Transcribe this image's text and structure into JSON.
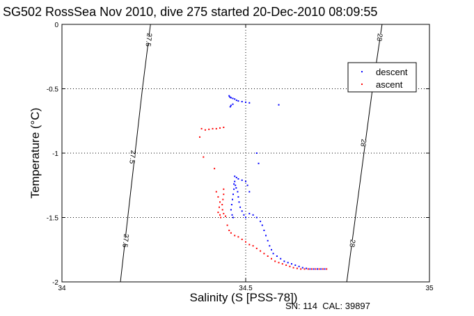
{
  "chart_data": {
    "type": "scatter",
    "title": "SG502 RossSea Nov 2010, dive 275 started 20-Dec-2010 08:09:55",
    "xlabel": "Salinity (S [PSS-78])",
    "ylabel": "Temperature (°C)",
    "xlim": [
      34,
      35
    ],
    "ylim": [
      -2,
      0
    ],
    "xticks": [
      34,
      34.5,
      35
    ],
    "xtick_labels": [
      "34",
      "34.5",
      "35"
    ],
    "yticks": [
      0,
      -0.5,
      -1,
      -1.5,
      -2
    ],
    "ytick_labels": [
      "0",
      "-0.5",
      "-1",
      "-1.5",
      "-2"
    ],
    "grid": true,
    "legend": {
      "position": "top-right",
      "entries": [
        "descent",
        "ascent"
      ]
    },
    "footer": "SN: 114  CAL: 39897",
    "colors": {
      "descent": "#0000ff",
      "ascent": "#ff0000",
      "axes": "#000000",
      "grid": "#000000"
    },
    "isopycnals": [
      {
        "label": "27.5",
        "points": [
          [
            34.159,
            -2.0
          ],
          [
            34.219,
            -0.5
          ],
          [
            34.241,
            0.0
          ]
        ],
        "label_positions": [
          [
            34.173,
            -1.68
          ],
          [
            34.192,
            -1.03
          ],
          [
            34.236,
            -0.12
          ]
        ]
      },
      {
        "label": "28",
        "points": [
          [
            34.775,
            -2.0
          ],
          [
            34.845,
            -0.5
          ],
          [
            34.871,
            0.0
          ]
        ],
        "label_positions": [
          [
            34.79,
            -1.7
          ],
          [
            34.82,
            -0.92
          ],
          [
            34.864,
            -0.1
          ]
        ]
      }
    ],
    "series": [
      {
        "name": "descent",
        "marker": "dot",
        "points": [
          [
            34.455,
            -0.555
          ],
          [
            34.457,
            -0.565
          ],
          [
            34.46,
            -0.57
          ],
          [
            34.465,
            -0.575
          ],
          [
            34.47,
            -0.58
          ],
          [
            34.475,
            -0.59
          ],
          [
            34.48,
            -0.595
          ],
          [
            34.49,
            -0.6
          ],
          [
            34.5,
            -0.605
          ],
          [
            34.51,
            -0.61
          ],
          [
            34.59,
            -0.625
          ],
          [
            34.465,
            -0.62
          ],
          [
            34.46,
            -0.63
          ],
          [
            34.458,
            -0.64
          ],
          [
            34.53,
            -1.0
          ],
          [
            34.535,
            -1.08
          ],
          [
            34.47,
            -1.18
          ],
          [
            34.475,
            -1.19
          ],
          [
            34.48,
            -1.2
          ],
          [
            34.49,
            -1.21
          ],
          [
            34.5,
            -1.22
          ],
          [
            34.505,
            -1.25
          ],
          [
            34.51,
            -1.3
          ],
          [
            34.47,
            -1.22
          ],
          [
            34.472,
            -1.25
          ],
          [
            34.468,
            -1.28
          ],
          [
            34.466,
            -1.32
          ],
          [
            34.464,
            -1.36
          ],
          [
            34.462,
            -1.4
          ],
          [
            34.46,
            -1.44
          ],
          [
            34.463,
            -1.48
          ],
          [
            34.466,
            -1.5
          ],
          [
            34.468,
            -1.24
          ],
          [
            34.474,
            -1.27
          ],
          [
            34.478,
            -1.3
          ],
          [
            34.48,
            -1.34
          ],
          [
            34.482,
            -1.38
          ],
          [
            34.485,
            -1.42
          ],
          [
            34.49,
            -1.45
          ],
          [
            34.495,
            -1.48
          ],
          [
            34.5,
            -1.5
          ],
          [
            34.51,
            -1.47
          ],
          [
            34.52,
            -1.48
          ],
          [
            34.53,
            -1.5
          ],
          [
            34.54,
            -1.53
          ],
          [
            34.545,
            -1.56
          ],
          [
            34.55,
            -1.6
          ],
          [
            34.555,
            -1.64
          ],
          [
            34.56,
            -1.68
          ],
          [
            34.565,
            -1.72
          ],
          [
            34.57,
            -1.75
          ],
          [
            34.575,
            -1.78
          ],
          [
            34.585,
            -1.8
          ],
          [
            34.595,
            -1.82
          ],
          [
            34.605,
            -1.84
          ],
          [
            34.615,
            -1.85
          ],
          [
            34.625,
            -1.86
          ],
          [
            34.635,
            -1.87
          ],
          [
            34.645,
            -1.88
          ],
          [
            34.655,
            -1.89
          ],
          [
            34.665,
            -1.895
          ],
          [
            34.675,
            -1.9
          ],
          [
            34.685,
            -1.9
          ],
          [
            34.695,
            -1.9
          ],
          [
            34.705,
            -1.9
          ],
          [
            34.715,
            -1.9
          ]
        ]
      },
      {
        "name": "ascent",
        "marker": "dot",
        "points": [
          [
            34.375,
            -0.875
          ],
          [
            34.38,
            -0.81
          ],
          [
            34.39,
            -0.82
          ],
          [
            34.4,
            -0.815
          ],
          [
            34.41,
            -0.81
          ],
          [
            34.42,
            -0.81
          ],
          [
            34.43,
            -0.805
          ],
          [
            34.44,
            -0.8
          ],
          [
            34.385,
            -1.03
          ],
          [
            34.415,
            -1.12
          ],
          [
            34.42,
            -1.3
          ],
          [
            34.425,
            -1.34
          ],
          [
            34.43,
            -1.38
          ],
          [
            34.428,
            -1.42
          ],
          [
            34.425,
            -1.46
          ],
          [
            34.43,
            -1.48
          ],
          [
            34.432,
            -1.5
          ],
          [
            34.44,
            -1.28
          ],
          [
            34.44,
            -1.32
          ],
          [
            34.438,
            -1.36
          ],
          [
            34.436,
            -1.4
          ],
          [
            34.437,
            -1.44
          ],
          [
            34.44,
            -1.47
          ],
          [
            34.445,
            -1.49
          ],
          [
            34.45,
            -1.56
          ],
          [
            34.455,
            -1.6
          ],
          [
            34.46,
            -1.62
          ],
          [
            34.47,
            -1.64
          ],
          [
            34.48,
            -1.65
          ],
          [
            34.49,
            -1.67
          ],
          [
            34.5,
            -1.69
          ],
          [
            34.51,
            -1.71
          ],
          [
            34.52,
            -1.72
          ],
          [
            34.53,
            -1.74
          ],
          [
            34.54,
            -1.76
          ],
          [
            34.55,
            -1.78
          ],
          [
            34.56,
            -1.8
          ],
          [
            34.57,
            -1.82
          ],
          [
            34.58,
            -1.84
          ],
          [
            34.59,
            -1.85
          ],
          [
            34.6,
            -1.86
          ],
          [
            34.61,
            -1.87
          ],
          [
            34.62,
            -1.88
          ],
          [
            34.63,
            -1.89
          ],
          [
            34.64,
            -1.895
          ],
          [
            34.65,
            -1.9
          ],
          [
            34.66,
            -1.9
          ],
          [
            34.67,
            -1.9
          ],
          [
            34.68,
            -1.9
          ],
          [
            34.69,
            -1.9
          ],
          [
            34.7,
            -1.9
          ],
          [
            34.71,
            -1.9
          ],
          [
            34.72,
            -1.9
          ]
        ]
      }
    ]
  }
}
